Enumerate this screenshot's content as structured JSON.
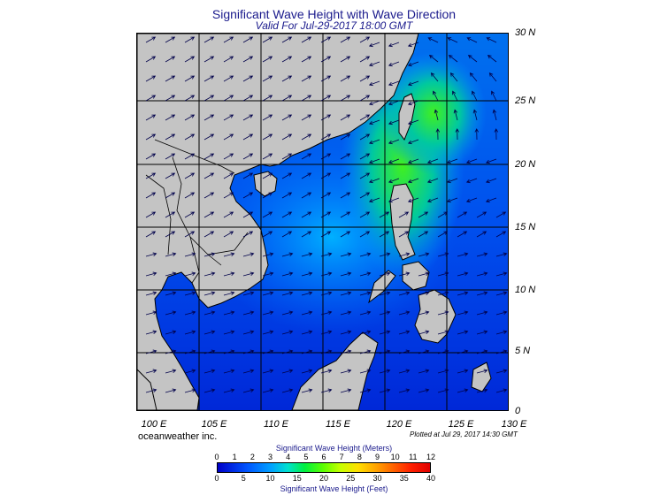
{
  "title": "Significant Wave Height with Wave Direction",
  "subtitle": "Valid For Jul-29-2017 18:00 GMT",
  "lat_labels": [
    "30 N",
    "25 N",
    "20 N",
    "15 N",
    "10 N",
    "5 N",
    "0"
  ],
  "lon_labels": [
    "100 E",
    "105 E",
    "110 E",
    "115 E",
    "120 E",
    "125 E",
    "130 E"
  ],
  "brand": "oceanweather inc.",
  "plotted": "Plotted at Jul 29, 2017 14:30 GMT",
  "colorbar": {
    "meters_title": "Significant Wave Height (Meters)",
    "feet_title": "Significant Wave Height (Feet)",
    "meters_ticks": [
      "0",
      "1",
      "2",
      "3",
      "4",
      "5",
      "6",
      "7",
      "8",
      "9",
      "10",
      "11",
      "12"
    ],
    "feet_ticks": [
      "0",
      "5",
      "10",
      "15",
      "20",
      "25",
      "30",
      "35",
      "40"
    ]
  },
  "colors": {
    "land": "#c4c4c4",
    "sea_low": "#0022dd",
    "sea_mid": "#0088ff",
    "sea_high": "#30e020",
    "title": "#1a1a8c"
  }
}
